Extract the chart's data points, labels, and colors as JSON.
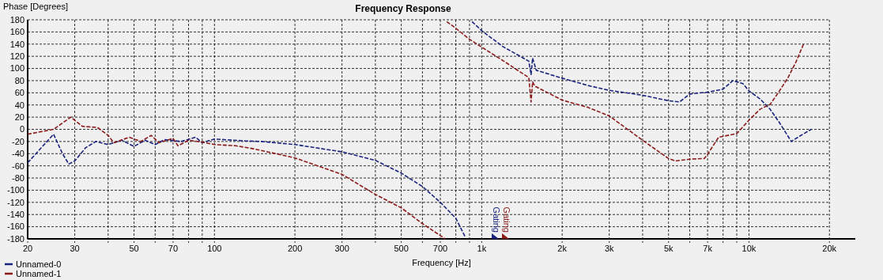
{
  "chart_data": {
    "type": "line",
    "title": "Frequency Response",
    "xlabel": "Frequency [Hz]",
    "ylabel": "Phase [Degrees]",
    "log": "x",
    "grid": true,
    "legend": "bottom left",
    "line_style": "dashed",
    "xlim": [
      20,
      25000
    ],
    "ylim": [
      -180,
      180
    ],
    "xticks": [
      20,
      30,
      {
        "value": 40,
        "label": null
      },
      50,
      {
        "value": 60,
        "label": null
      },
      70,
      {
        "value": 80,
        "label": null
      },
      {
        "value": 90,
        "label": null
      },
      100,
      200,
      300,
      {
        "value": 400,
        "label": null
      },
      500,
      {
        "value": 600,
        "label": null
      },
      700,
      {
        "value": 800,
        "label": null
      },
      {
        "value": 900,
        "label": null
      },
      {
        "value": 1000,
        "label": "1k"
      },
      {
        "value": 2000,
        "label": "2k"
      },
      {
        "value": 3000,
        "label": "3k"
      },
      {
        "value": 4000,
        "label": null
      },
      {
        "value": 5000,
        "label": "5k"
      },
      {
        "value": 6000,
        "label": null
      },
      {
        "value": 7000,
        "label": "7k"
      },
      {
        "value": 8000,
        "label": null
      },
      {
        "value": 9000,
        "label": null
      },
      {
        "value": 10000,
        "label": "10k"
      },
      {
        "value": 20000,
        "label": "20k"
      }
    ],
    "yticks": [
      -180,
      -160,
      -140,
      -120,
      -100,
      -80,
      -60,
      -40,
      -20,
      0,
      20,
      40,
      60,
      80,
      100,
      120,
      140,
      160,
      180
    ],
    "annotations": [
      "Gating",
      "Gating"
    ],
    "series": [
      {
        "name": "Unnamed-0",
        "color": "#1a237e",
        "x": [
          20,
          25,
          27,
          28.5,
          30,
          33,
          36,
          40,
          45,
          50,
          55,
          60,
          65,
          75,
          85,
          90,
          100,
          130,
          150,
          200,
          300,
          400,
          500,
          600,
          700,
          800,
          870,
          null,
          920,
          1000,
          1200,
          1500,
          1530,
          1550,
          1600,
          2000,
          2500,
          3000,
          4000,
          5000,
          5500,
          6000,
          7000,
          8000,
          8700,
          9500,
          10000,
          11000,
          12000,
          13000,
          14400,
          15500,
          17100
        ],
        "values": [
          -55,
          -8,
          -40,
          -57,
          -52,
          -30,
          -20,
          -25,
          -18,
          -28,
          -18,
          -25,
          -17,
          -20,
          -13,
          -22,
          -16,
          -19,
          -20,
          -25,
          -37,
          -51,
          -72,
          -94,
          -120,
          -146,
          -178,
          null,
          177,
          162,
          136,
          112,
          90,
          117,
          97,
          84,
          72,
          64,
          56,
          47,
          45,
          58,
          61,
          66,
          80,
          75,
          63,
          50,
          33,
          11,
          -20,
          -11,
          0
        ]
      },
      {
        "name": "Unnamed-1",
        "color": "#8b1a1a",
        "x": [
          20,
          25,
          29,
          32,
          36.5,
          40,
          42,
          48,
          53,
          58,
          62,
          70,
          73,
          80,
          90,
          100,
          120,
          140,
          170,
          200,
          300,
          400,
          500,
          600,
          730,
          null,
          740,
          800,
          900,
          1000,
          1200,
          1500,
          1530,
          1550,
          1580,
          2000,
          2500,
          3000,
          4000,
          5000,
          5300,
          6000,
          6800,
          7000,
          7700,
          9000,
          10000,
          11000,
          12000,
          13000,
          14000,
          15000,
          16000
        ],
        "values": [
          -8,
          0,
          20,
          5,
          3,
          -10,
          -22,
          -13,
          -20,
          -10,
          -22,
          -15,
          -27,
          -18,
          -21,
          -25,
          -27,
          -32,
          -40,
          -47,
          -74,
          -107,
          -129,
          -155,
          -180,
          null,
          177,
          166,
          148,
          135,
          113,
          85,
          45,
          78,
          71,
          48,
          36,
          22,
          -18,
          -48,
          -52,
          -49,
          -48,
          -41,
          -13,
          -7,
          15,
          33,
          41,
          63,
          85,
          111,
          140
        ]
      }
    ]
  }
}
